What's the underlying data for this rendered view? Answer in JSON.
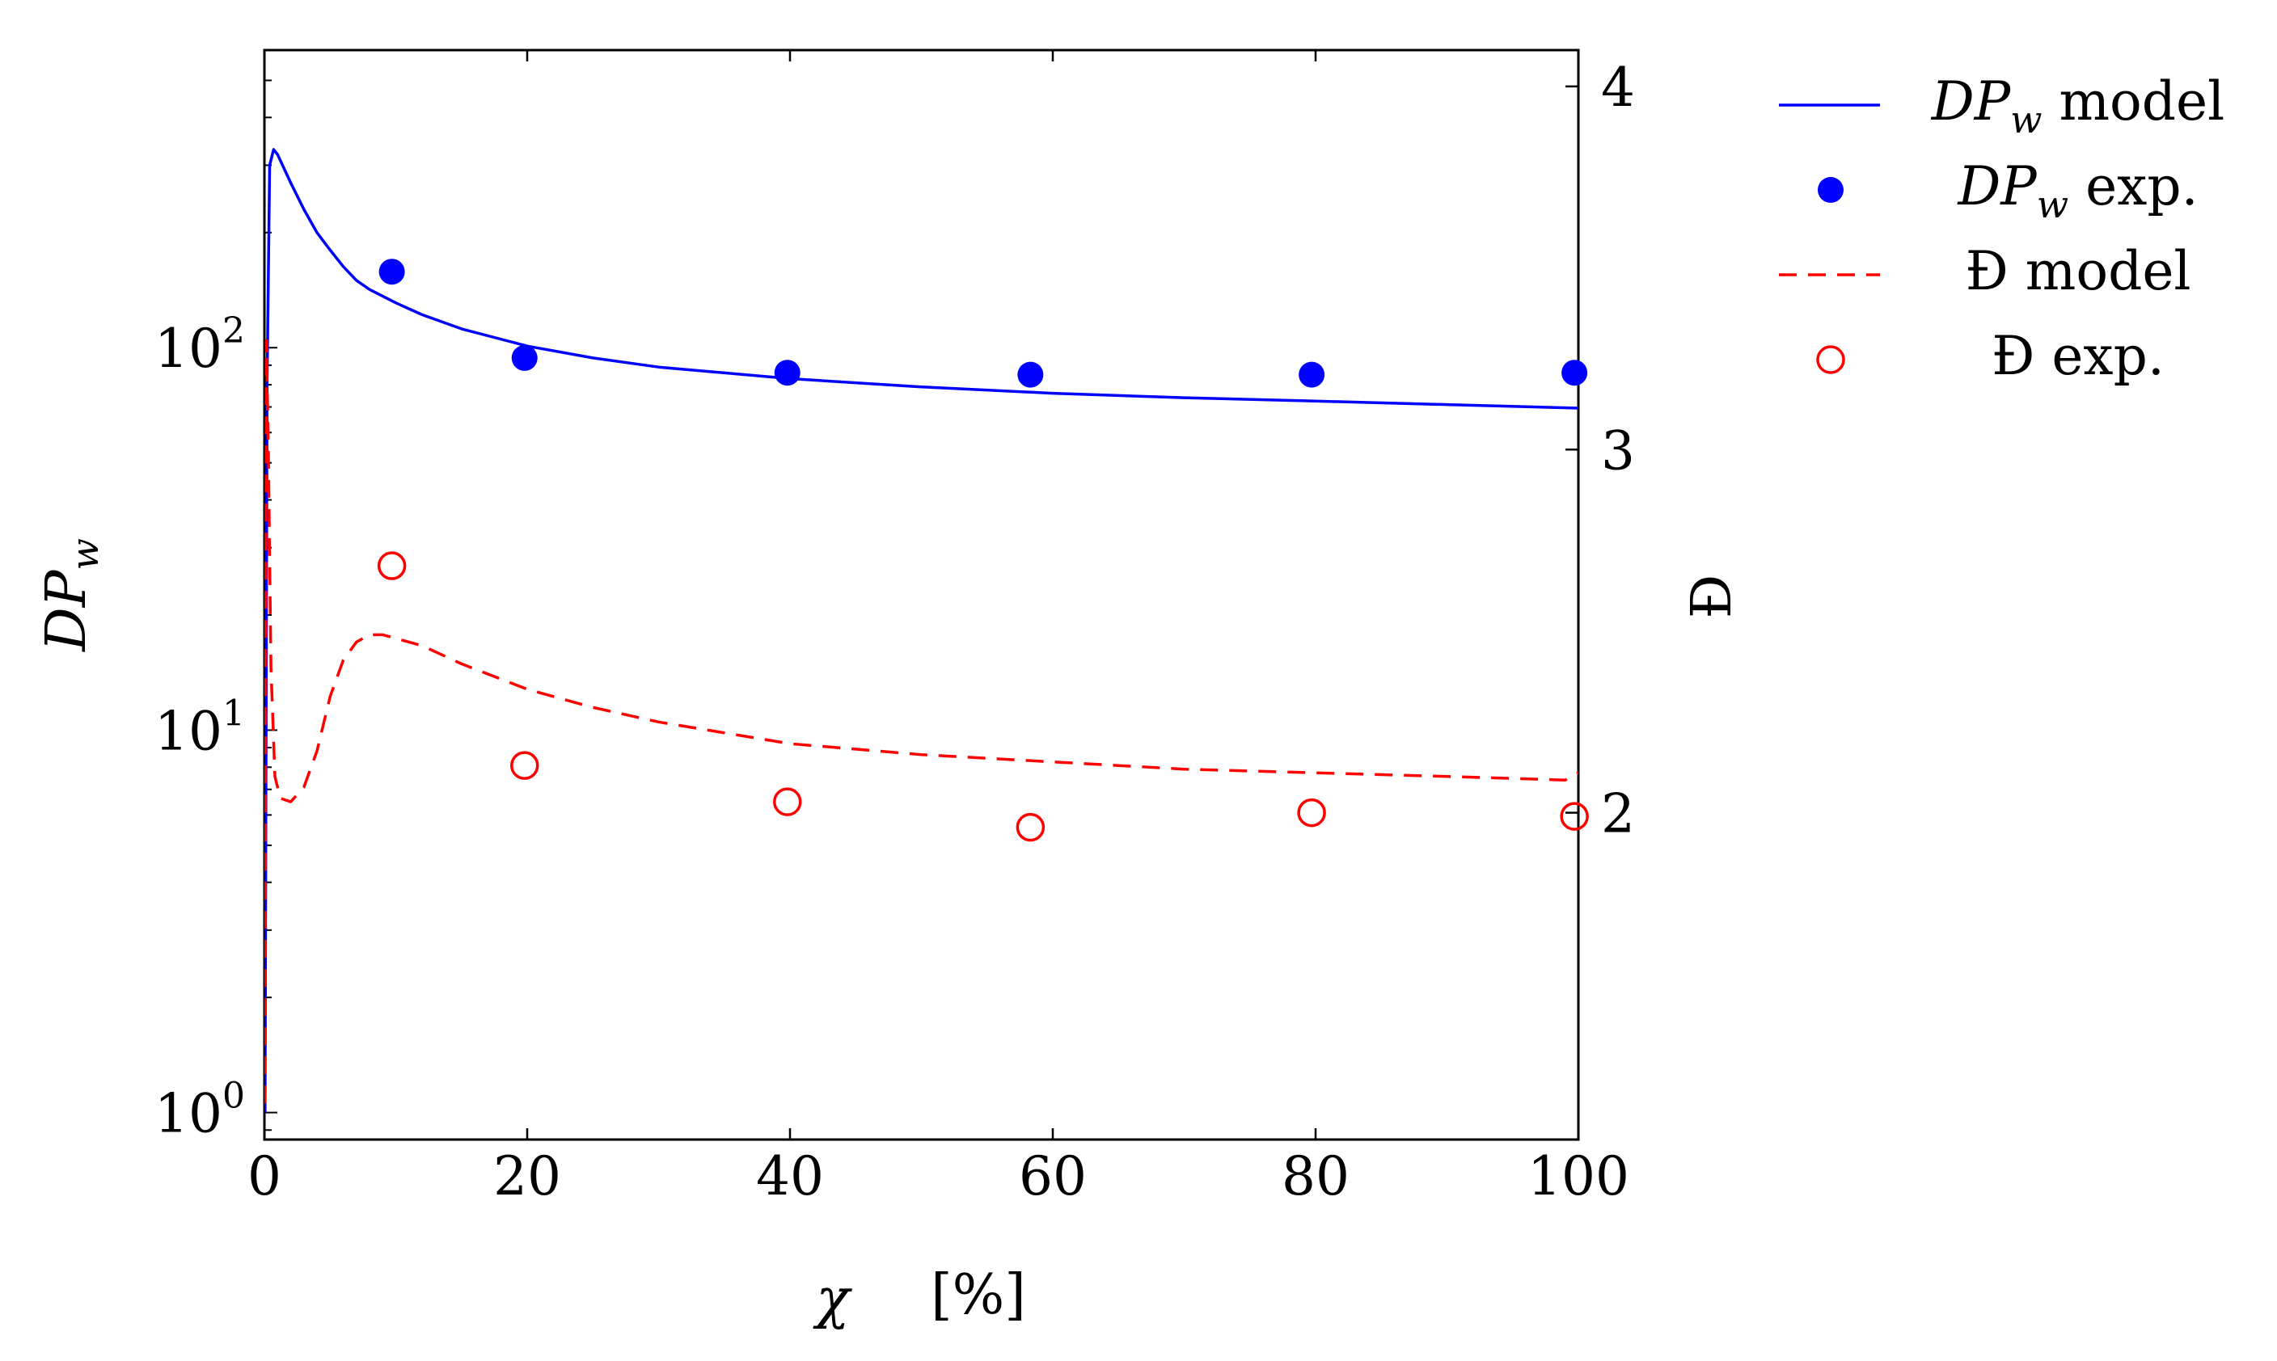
{
  "chart_data": {
    "type": "line",
    "x_axis": {
      "label_symbol": "χ",
      "label_unit": "[%]",
      "ticks": [
        0,
        20,
        40,
        60,
        80,
        100
      ],
      "range": [
        0,
        100
      ]
    },
    "y_left": {
      "label_main": "DP",
      "label_sub": "w",
      "scale": "log",
      "range": [
        0.85,
        600
      ],
      "ticks": [
        {
          "base": "10",
          "exp": "0",
          "value": 1
        },
        {
          "base": "10",
          "exp": "1",
          "value": 10
        },
        {
          "base": "10",
          "exp": "2",
          "value": 100
        }
      ]
    },
    "y_right": {
      "label": "Đ",
      "scale": "linear",
      "range": [
        1.1,
        4.1
      ],
      "ticks": [
        2,
        3,
        4
      ]
    },
    "series": [
      {
        "name": "DP_w model",
        "legend_main": "DP",
        "legend_sub": "w",
        "legend_rest": " model",
        "axis": "left",
        "style": "solid-line",
        "color": "#0000ff",
        "points": [
          [
            0.05,
            1.0
          ],
          [
            0.2,
            80
          ],
          [
            0.4,
            300
          ],
          [
            0.7,
            330
          ],
          [
            1,
            320
          ],
          [
            2,
            270
          ],
          [
            3,
            230
          ],
          [
            4,
            200
          ],
          [
            5,
            180
          ],
          [
            6,
            163
          ],
          [
            7,
            150
          ],
          [
            8,
            142
          ],
          [
            10,
            131
          ],
          [
            12,
            122
          ],
          [
            15,
            112
          ],
          [
            20,
            101
          ],
          [
            25,
            94
          ],
          [
            30,
            89
          ],
          [
            40,
            83
          ],
          [
            50,
            79
          ],
          [
            60,
            76
          ],
          [
            70,
            74
          ],
          [
            80,
            72.5
          ],
          [
            90,
            71
          ],
          [
            100,
            69.5
          ]
        ]
      },
      {
        "name": "DP_w exp.",
        "legend_main": "DP",
        "legend_sub": "w",
        "legend_rest": " exp.",
        "axis": "left",
        "style": "filled-marker",
        "color": "#0000ff",
        "points": [
          [
            9.7,
            158
          ],
          [
            19.8,
            94
          ],
          [
            39.8,
            86
          ],
          [
            58.3,
            85
          ],
          [
            79.7,
            85
          ],
          [
            99.7,
            86
          ]
        ]
      },
      {
        "name": "Đ model",
        "legend_main": "Đ model",
        "axis": "right",
        "style": "dashed-line",
        "color": "#ff0000",
        "points": [
          [
            0.05,
            1.2
          ],
          [
            0.15,
            3.3
          ],
          [
            0.3,
            3.0
          ],
          [
            0.5,
            2.4
          ],
          [
            0.8,
            2.1
          ],
          [
            1.2,
            2.04
          ],
          [
            2,
            2.03
          ],
          [
            3,
            2.07
          ],
          [
            4,
            2.17
          ],
          [
            5,
            2.32
          ],
          [
            6,
            2.42
          ],
          [
            7,
            2.47
          ],
          [
            8,
            2.49
          ],
          [
            9,
            2.49
          ],
          [
            10,
            2.48
          ],
          [
            12,
            2.46
          ],
          [
            15,
            2.41
          ],
          [
            20,
            2.34
          ],
          [
            25,
            2.29
          ],
          [
            30,
            2.25
          ],
          [
            40,
            2.19
          ],
          [
            50,
            2.16
          ],
          [
            60,
            2.14
          ],
          [
            70,
            2.12
          ],
          [
            80,
            2.11
          ],
          [
            90,
            2.1
          ],
          [
            99,
            2.09
          ],
          [
            100,
            2.11
          ]
        ]
      },
      {
        "name": "Đ exp.",
        "legend_main": "Đ exp.",
        "axis": "right",
        "style": "open-marker",
        "color": "#ff0000",
        "points": [
          [
            9.7,
            2.68
          ],
          [
            19.8,
            2.13
          ],
          [
            39.8,
            2.03
          ],
          [
            58.3,
            1.96
          ],
          [
            79.7,
            2.0
          ],
          [
            99.7,
            1.99
          ]
        ]
      }
    ]
  }
}
